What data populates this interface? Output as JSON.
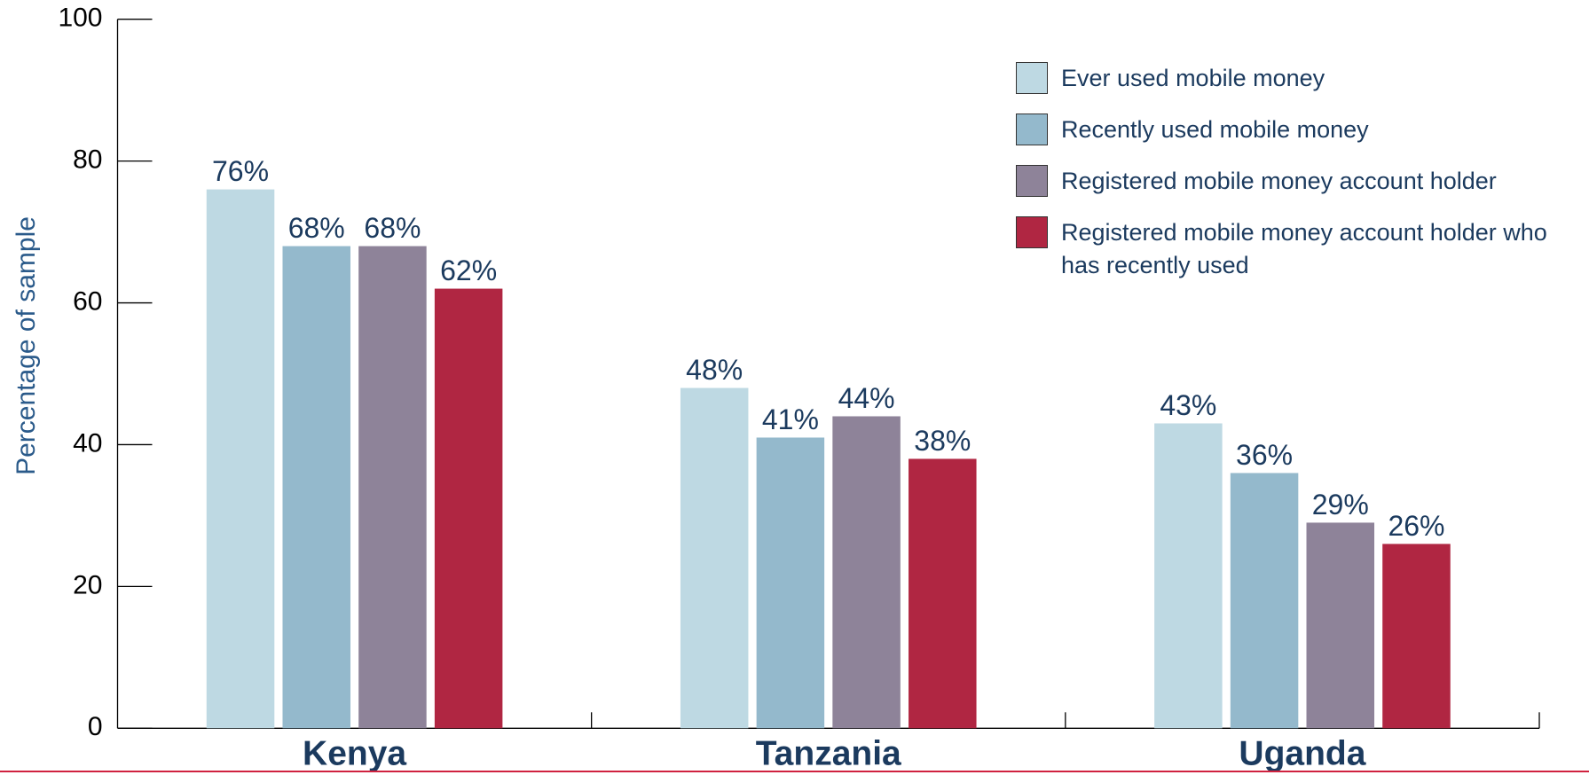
{
  "chart_data": {
    "type": "bar",
    "y_label": "Percentage of sample",
    "categories": [
      "Kenya",
      "Tanzania",
      "Uganda"
    ],
    "series": [
      {
        "name": "Ever used mobile money",
        "color": "#bed9e3",
        "values": [
          76,
          48,
          43
        ],
        "value_labels": [
          "76%",
          "48%",
          "43%"
        ]
      },
      {
        "name": "Recently used mobile money",
        "color": "#94b9cc",
        "values": [
          68,
          41,
          36
        ],
        "value_labels": [
          "68%",
          "41%",
          "36%"
        ]
      },
      {
        "name": "Registered mobile money account holder",
        "color": "#8e8399",
        "values": [
          68,
          44,
          29
        ],
        "value_labels": [
          "68%",
          "44%",
          "29%"
        ]
      },
      {
        "name": "Registered mobile money account holder who has recently used",
        "color": "#b02642",
        "values": [
          62,
          38,
          26
        ],
        "value_labels": [
          "62%",
          "38%",
          "26%"
        ]
      }
    ],
    "ylim": [
      0,
      100
    ],
    "yticks": [
      0,
      20,
      40,
      60,
      80,
      100
    ],
    "legend": "upper right"
  }
}
